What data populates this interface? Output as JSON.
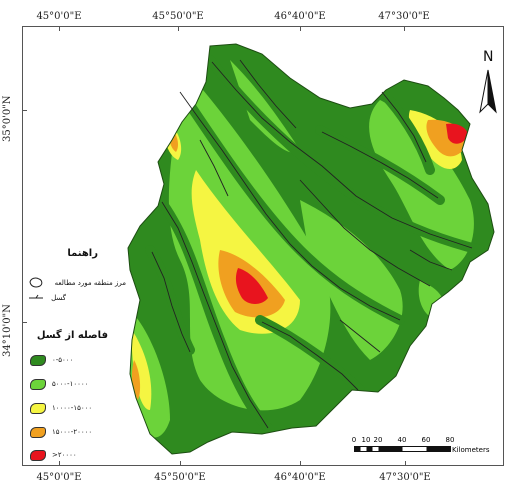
{
  "grid": {
    "top_labels": [
      "45°0'0\"E",
      "45°50'0\"E",
      "46°40'0\"E",
      "47°30'0\"E"
    ],
    "bottom_labels": [
      "45°0'0\"E",
      "45°50'0\"E",
      "46°40'0\"E",
      "47°30'0\"E"
    ],
    "left_labels": [
      "35°0'0\"N",
      "34°10'0\"N"
    ]
  },
  "north_arrow": {
    "letter": "N",
    "icon": "north-arrow-icon"
  },
  "legend": {
    "title": "راهنما",
    "study_area": "مرز منطقه مورد مطالعه",
    "fault": "گسل",
    "distance_title": "فاصله از گسل",
    "classes": [
      {
        "label": "۰-۵۰۰۰",
        "color": "#2f8a1f"
      },
      {
        "label": "۵۰۰۰-۱۰۰۰۰",
        "color": "#6cd33a"
      },
      {
        "label": "۱۰۰۰۰-۱۵۰۰۰",
        "color": "#f5f542"
      },
      {
        "label": "۱۵۰۰۰-۲۰۰۰۰",
        "color": "#f0a020"
      },
      {
        "label": ">۲۰۰۰۰",
        "color": "#e8141e"
      }
    ]
  },
  "scale_bar": {
    "ticks": [
      "0",
      "10",
      "20",
      "40",
      "60",
      "80"
    ],
    "unit": "Kilometers"
  }
}
